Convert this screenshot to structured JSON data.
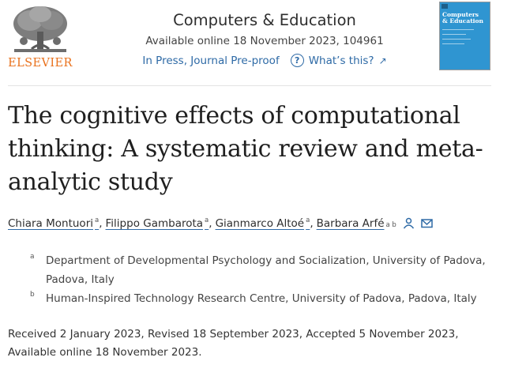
{
  "publisher": {
    "wordmark": "ELSEVIER"
  },
  "journal": {
    "name": "Computers & Education",
    "availability": "Available online 18 November 2023, 104961",
    "status_link": "In Press, Journal Pre-proof",
    "whats_this": "What’s this?",
    "cover_title_line1": "Computers",
    "cover_title_line2": "& Education"
  },
  "article": {
    "title": "The cognitive effects of computational thinking: A systematic review and meta-analytic study"
  },
  "authors": [
    {
      "name": "Chiara Montuori",
      "sup": "a"
    },
    {
      "name": "Filippo Gambarota",
      "sup": "a"
    },
    {
      "name": "Gianmarco Altoé",
      "sup": "a"
    },
    {
      "name": "Barbara Arfé",
      "sup": "a b"
    }
  ],
  "affiliations": [
    {
      "letter": "a",
      "text": "Department of Developmental Psychology and Socialization, University of Padova, Padova, Italy"
    },
    {
      "letter": "b",
      "text": "Human-Inspired Technology Research Centre, University of Padova, Padova, Italy"
    }
  ],
  "history": "Received 2 January 2023, Revised 18 September 2023, Accepted 5 November 2023, Available online 18 November 2023.",
  "icons": {
    "person": "person-icon",
    "mail": "mail-icon",
    "help": "question-circle-icon",
    "external": "arrow-up-right-icon"
  },
  "colors": {
    "brand_orange": "#e9711c",
    "link_blue": "#2e6aa6",
    "cover_blue": "#2f95d1"
  }
}
